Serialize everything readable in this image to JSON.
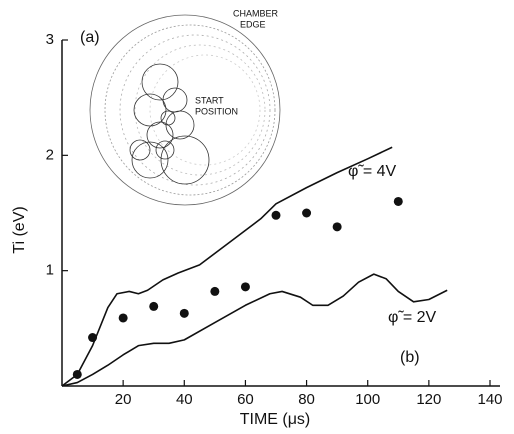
{
  "chart_data": {
    "type": "line",
    "xlabel": "TIME (μs)",
    "ylabel": "Ti (eV)",
    "xlim": [
      0,
      140
    ],
    "ylim": [
      0,
      3
    ],
    "xticks": [
      20,
      40,
      60,
      80,
      100,
      120,
      140
    ],
    "yticks": [
      1,
      2,
      3
    ],
    "panel_labels": [
      "(a)",
      "(b)"
    ],
    "inset_labels": {
      "chamber_edge": [
        "CHAMBER",
        "EDGE"
      ],
      "start_position": [
        "START",
        "POSITION"
      ]
    },
    "series": [
      {
        "name": "φ̃ = 4V",
        "color": "#111111",
        "x": [
          0,
          5,
          10,
          15,
          18,
          22,
          25,
          28,
          33,
          38,
          45,
          55,
          65,
          70,
          80,
          90,
          100,
          108
        ],
        "values": [
          0,
          0.1,
          0.35,
          0.68,
          0.8,
          0.82,
          0.8,
          0.83,
          0.92,
          0.98,
          1.05,
          1.25,
          1.45,
          1.58,
          1.72,
          1.85,
          1.97,
          2.07
        ]
      },
      {
        "name": "φ̃ = 2V",
        "color": "#111111",
        "x": [
          0,
          5,
          10,
          15,
          20,
          25,
          30,
          35,
          40,
          50,
          60,
          68,
          72,
          78,
          82,
          87,
          92,
          97,
          102,
          106,
          110,
          115,
          120,
          126
        ],
        "values": [
          0,
          0.03,
          0.1,
          0.18,
          0.27,
          0.35,
          0.37,
          0.37,
          0.4,
          0.55,
          0.7,
          0.8,
          0.82,
          0.77,
          0.7,
          0.7,
          0.78,
          0.9,
          0.97,
          0.93,
          0.82,
          0.73,
          0.75,
          0.83
        ]
      }
    ],
    "points": {
      "color": "#111111",
      "x": [
        5,
        10,
        20,
        30,
        40,
        50,
        60,
        70,
        80,
        90,
        110
      ],
      "values": [
        0.1,
        0.42,
        0.59,
        0.69,
        0.63,
        0.82,
        0.86,
        1.48,
        1.5,
        1.38,
        1.6
      ]
    }
  }
}
